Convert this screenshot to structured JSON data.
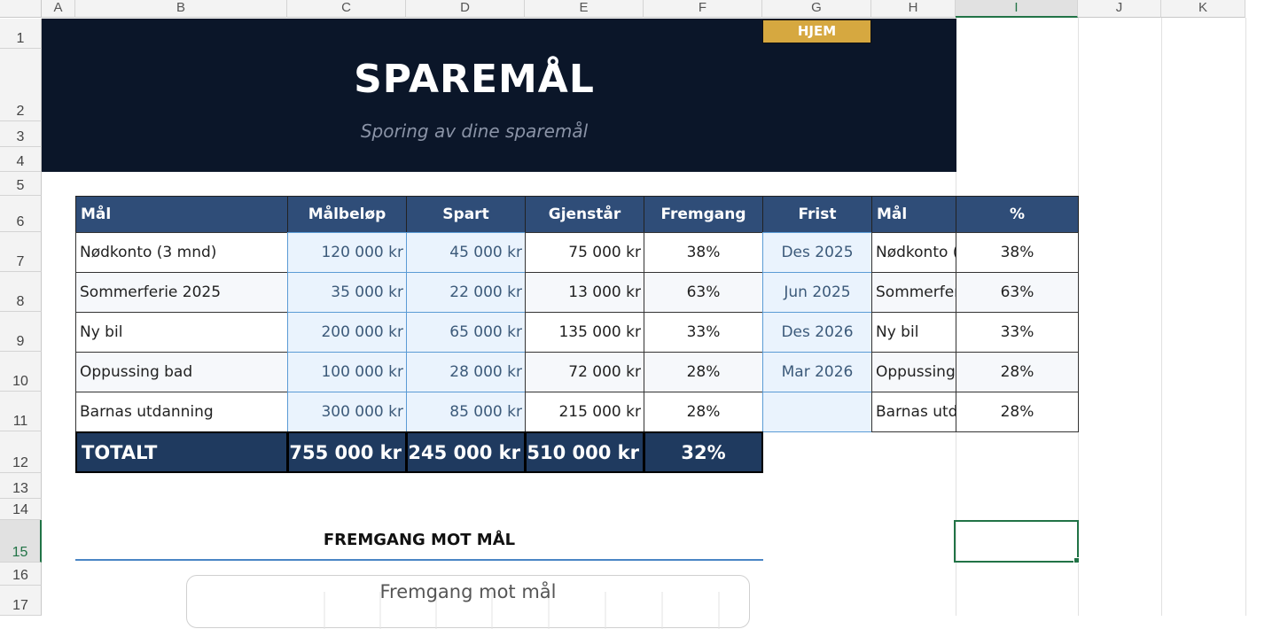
{
  "columns": [
    "A",
    "B",
    "C",
    "D",
    "E",
    "F",
    "G",
    "H",
    "I",
    "J",
    "K"
  ],
  "rows": [
    "1",
    "2",
    "3",
    "4",
    "5",
    "6",
    "7",
    "8",
    "9",
    "10",
    "11",
    "12",
    "13",
    "14",
    "15",
    "16",
    "17"
  ],
  "nav_button": "HJEM",
  "title": "SPAREMÅL",
  "subtitle": "Sporing av dine sparemål",
  "table": {
    "headers": [
      "Mål",
      "Målbeløp",
      "Spart",
      "Gjenstår",
      "Fremgang",
      "Frist",
      "Mål",
      "%"
    ],
    "rows": [
      {
        "goal": "Nødkonto (3 mnd)",
        "target": "120 000 kr",
        "saved": "45 000 kr",
        "remaining": "75 000 kr",
        "progress": "38%",
        "deadline": "Des 2025",
        "goal2": "Nødkonto (",
        "pct": "38%"
      },
      {
        "goal": "Sommerferie 2025",
        "target": "35 000 kr",
        "saved": "22 000 kr",
        "remaining": "13 000 kr",
        "progress": "63%",
        "deadline": "Jun 2025",
        "goal2": "Sommerfer",
        "pct": "63%"
      },
      {
        "goal": "Ny bil",
        "target": "200 000 kr",
        "saved": "65 000 kr",
        "remaining": "135 000 kr",
        "progress": "33%",
        "deadline": "Des 2026",
        "goal2": "Ny bil",
        "pct": "33%"
      },
      {
        "goal": "Oppussing bad",
        "target": "100 000 kr",
        "saved": "28 000 kr",
        "remaining": "72 000 kr",
        "progress": "28%",
        "deadline": "Mar 2026",
        "goal2": "Oppussing",
        "pct": "28%"
      },
      {
        "goal": "Barnas utdanning",
        "target": "300 000 kr",
        "saved": "85 000 kr",
        "remaining": "215 000 kr",
        "progress": "28%",
        "deadline": "",
        "goal2": "Barnas utd",
        "pct": "28%"
      }
    ],
    "total": {
      "label": "TOTALT",
      "target": "755 000 kr",
      "saved": "245 000 kr",
      "remaining": "510 000 kr",
      "progress": "32%"
    }
  },
  "section_title": "FREMGANG MOT MÅL",
  "chart_title": "Fremgang mot mål",
  "colors": {
    "banner": "#0b1629",
    "header": "#2f4d78",
    "total": "#1f3a5f",
    "button": "#d6a840",
    "accent": "#4a86c5",
    "selection": "#217346"
  }
}
